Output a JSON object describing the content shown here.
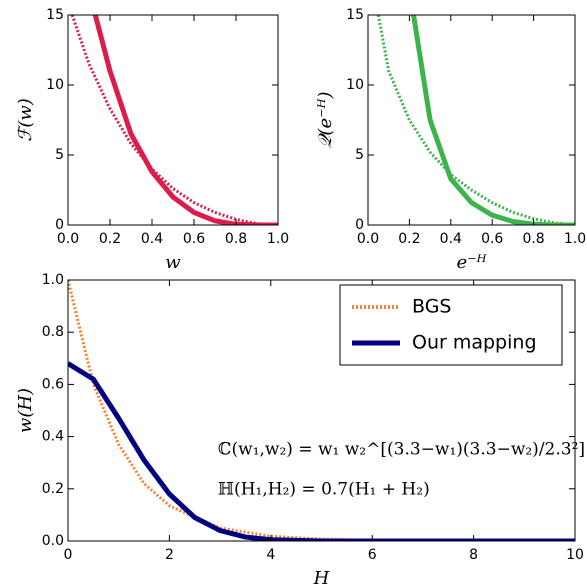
{
  "chart_data": [
    {
      "type": "line",
      "xlabel": "w",
      "ylabel": "ℱ(w)",
      "xlim": [
        0,
        1
      ],
      "ylim": [
        0,
        15
      ],
      "xticks": [
        {
          "value": 0,
          "label": "0.0"
        },
        {
          "value": 0.2,
          "label": "0.2"
        },
        {
          "value": 0.4,
          "label": "0.4"
        },
        {
          "value": 0.6,
          "label": "0.6"
        },
        {
          "value": 0.8,
          "label": "0.8"
        },
        {
          "value": 1,
          "label": "1.0"
        }
      ],
      "yticks": [
        0,
        5,
        10,
        15
      ],
      "series": [
        {
          "color": "#dc1c4b",
          "style": "dotted",
          "x": [
            0.02,
            0.1,
            0.2,
            0.3,
            0.4,
            0.5,
            0.6,
            0.7,
            0.8,
            0.9,
            1.0
          ],
          "values": [
            15,
            11.5,
            8.3,
            5.8,
            4.0,
            2.6,
            1.6,
            0.9,
            0.4,
            0.1,
            0
          ]
        },
        {
          "color": "#dc1c4b",
          "style": "solid",
          "x": [
            0.13,
            0.2,
            0.3,
            0.4,
            0.5,
            0.6,
            0.7,
            0.8,
            0.9,
            1.0
          ],
          "values": [
            15,
            11,
            6.5,
            3.8,
            2.0,
            0.9,
            0.3,
            0.05,
            0,
            0
          ]
        }
      ]
    },
    {
      "type": "line",
      "xlabel": "e⁻ᴴ",
      "ylabel": "𝒬(e⁻ᴴ)",
      "xlim": [
        0,
        1
      ],
      "ylim": [
        0,
        15
      ],
      "xticks": [
        {
          "value": 0,
          "label": "0.0"
        },
        {
          "value": 0.2,
          "label": "0.2"
        },
        {
          "value": 0.4,
          "label": "0.4"
        },
        {
          "value": 0.6,
          "label": "0.6"
        },
        {
          "value": 0.8,
          "label": "0.8"
        },
        {
          "value": 1,
          "label": "1.0"
        }
      ],
      "yticks": [
        0,
        5,
        10,
        15
      ],
      "series": [
        {
          "color": "#3cb44b",
          "style": "dotted",
          "x": [
            0.05,
            0.1,
            0.2,
            0.3,
            0.4,
            0.5,
            0.6,
            0.7,
            0.8,
            0.9,
            1.0
          ],
          "values": [
            15,
            11,
            7.5,
            5.2,
            3.6,
            2.5,
            1.6,
            0.9,
            0.45,
            0.15,
            0
          ]
        },
        {
          "color": "#3cb44b",
          "style": "solid",
          "x": [
            0.22,
            0.3,
            0.4,
            0.5,
            0.6,
            0.7,
            0.8,
            0.9,
            1.0
          ],
          "values": [
            15,
            7.5,
            3.3,
            1.6,
            0.7,
            0.25,
            0.05,
            0,
            0
          ]
        }
      ]
    },
    {
      "type": "line",
      "xlabel": "H",
      "ylabel": "w(H)",
      "xlim": [
        0,
        10
      ],
      "ylim": [
        0,
        1
      ],
      "xticks": [
        0,
        2,
        4,
        6,
        8,
        10
      ],
      "yticks": [
        {
          "value": 0,
          "label": "0.0"
        },
        {
          "value": 0.2,
          "label": "0.2"
        },
        {
          "value": 0.4,
          "label": "0.4"
        },
        {
          "value": 0.6,
          "label": "0.6"
        },
        {
          "value": 0.8,
          "label": "0.8"
        },
        {
          "value": 1,
          "label": "1.0"
        }
      ],
      "legend": "upper right",
      "annotations": [
        "ℂ(w₁,w₂) = w₁ w₂^[(3.3−w₁)(3.3−w₂)/2.3²]",
        "ℍ(H₁,H₂) = 0.7(H₁ + H₂)"
      ],
      "series": [
        {
          "name": "BGS",
          "color": "#f58231",
          "style": "dotted",
          "x": [
            0,
            0.5,
            1,
            1.5,
            2,
            3,
            4,
            5,
            6,
            8,
            10
          ],
          "values": [
            1.0,
            0.6,
            0.37,
            0.22,
            0.135,
            0.05,
            0.018,
            0.007,
            0.002,
            0,
            0
          ]
        },
        {
          "name": "Our mapping",
          "color": "#000080",
          "style": "solid",
          "x": [
            0,
            0.5,
            1,
            1.5,
            2,
            2.5,
            3,
            3.5,
            4,
            5,
            10
          ],
          "values": [
            0.68,
            0.62,
            0.47,
            0.31,
            0.18,
            0.09,
            0.04,
            0.015,
            0.005,
            0,
            0
          ]
        }
      ]
    }
  ]
}
